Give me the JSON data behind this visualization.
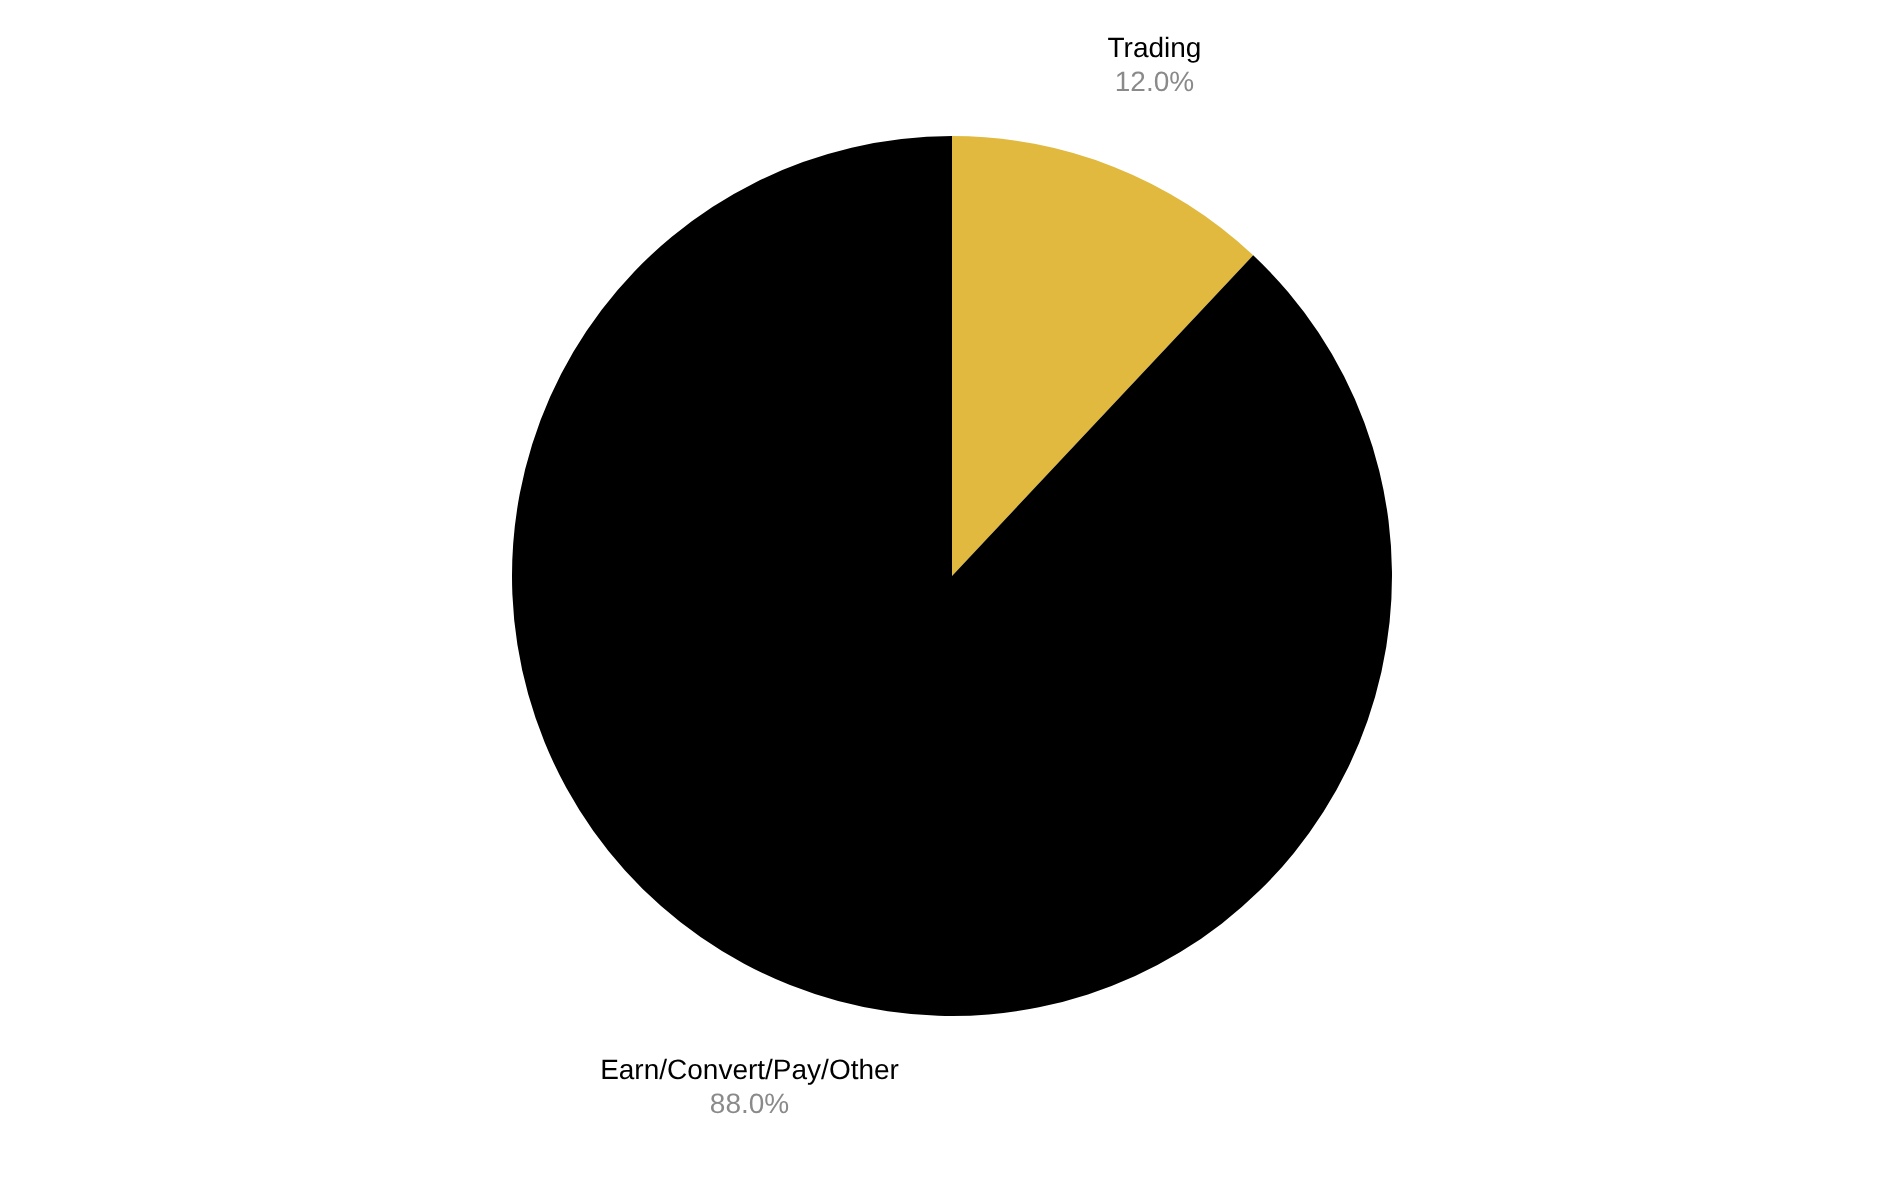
{
  "chart_data": {
    "type": "pie",
    "categories": [
      "Trading",
      "Earn/Convert/Pay/Other"
    ],
    "values": [
      12,
      88
    ],
    "colors": [
      "#e0b93e",
      "#000000"
    ],
    "value_labels": [
      "12.0%",
      "88.0%"
    ]
  }
}
